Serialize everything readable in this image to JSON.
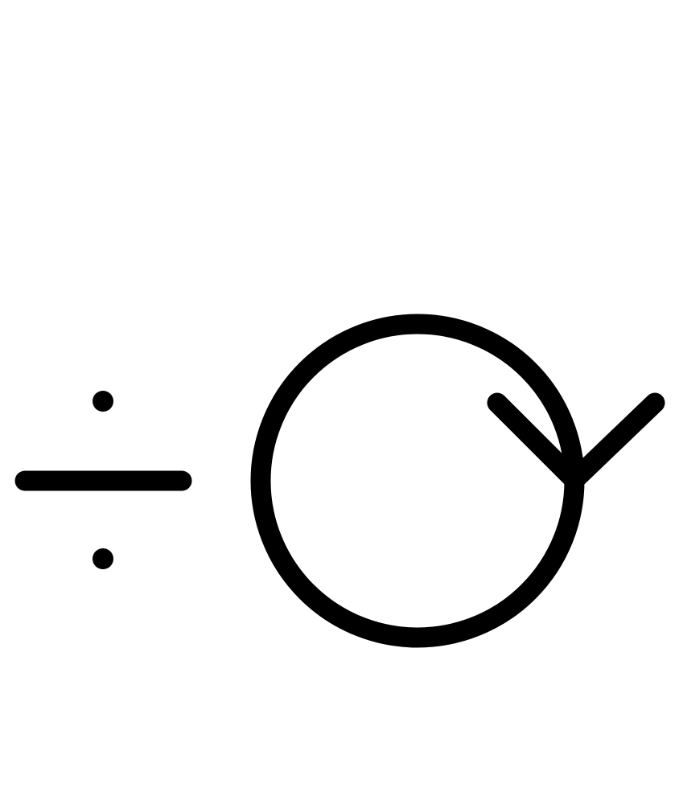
{
  "symbol": {
    "description_name": "divide-circle-arrow-glyph",
    "stroke_color": "#000000",
    "background_color": "#ffffff",
    "icons": [
      "division-sign-icon",
      "clockwise-circle-arrow-icon"
    ]
  }
}
